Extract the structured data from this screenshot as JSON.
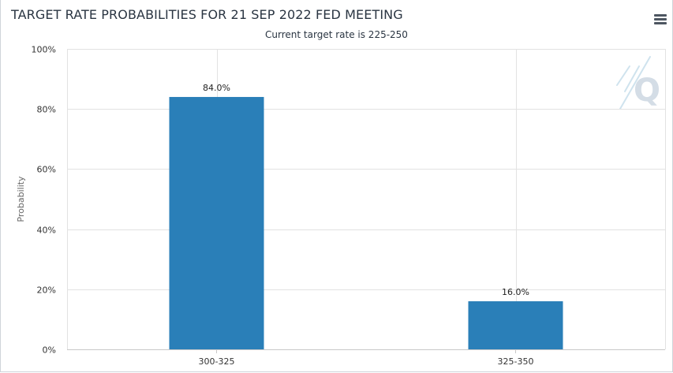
{
  "title": "TARGET RATE PROBABILITIES FOR 21 SEP 2022 FED MEETING",
  "subtitle": "Current target rate is 225-250",
  "menu_icon": "hamburger-menu-icon",
  "logo_icon": "q-logo-icon",
  "logo_text": "Q",
  "colors": {
    "bar": "#2a7fb8",
    "grid": "#e2e2e2",
    "axis": "#c8c8c8"
  },
  "chart_data": {
    "type": "bar",
    "title": "TARGET RATE PROBABILITIES FOR 21 SEP 2022 FED MEETING",
    "subtitle": "Current target rate is 225-250",
    "categories": [
      "300-325",
      "325-350"
    ],
    "values": [
      84.0,
      16.0
    ],
    "data_labels": [
      "84.0%",
      "16.0%"
    ],
    "xlabel": "",
    "ylabel": "Probability",
    "ylim": [
      0,
      100
    ],
    "yticks": [
      0,
      20,
      40,
      60,
      80,
      100
    ],
    "ytick_labels": [
      "0%",
      "20%",
      "40%",
      "60%",
      "80%",
      "100%"
    ],
    "grid": true,
    "legend": "none"
  }
}
